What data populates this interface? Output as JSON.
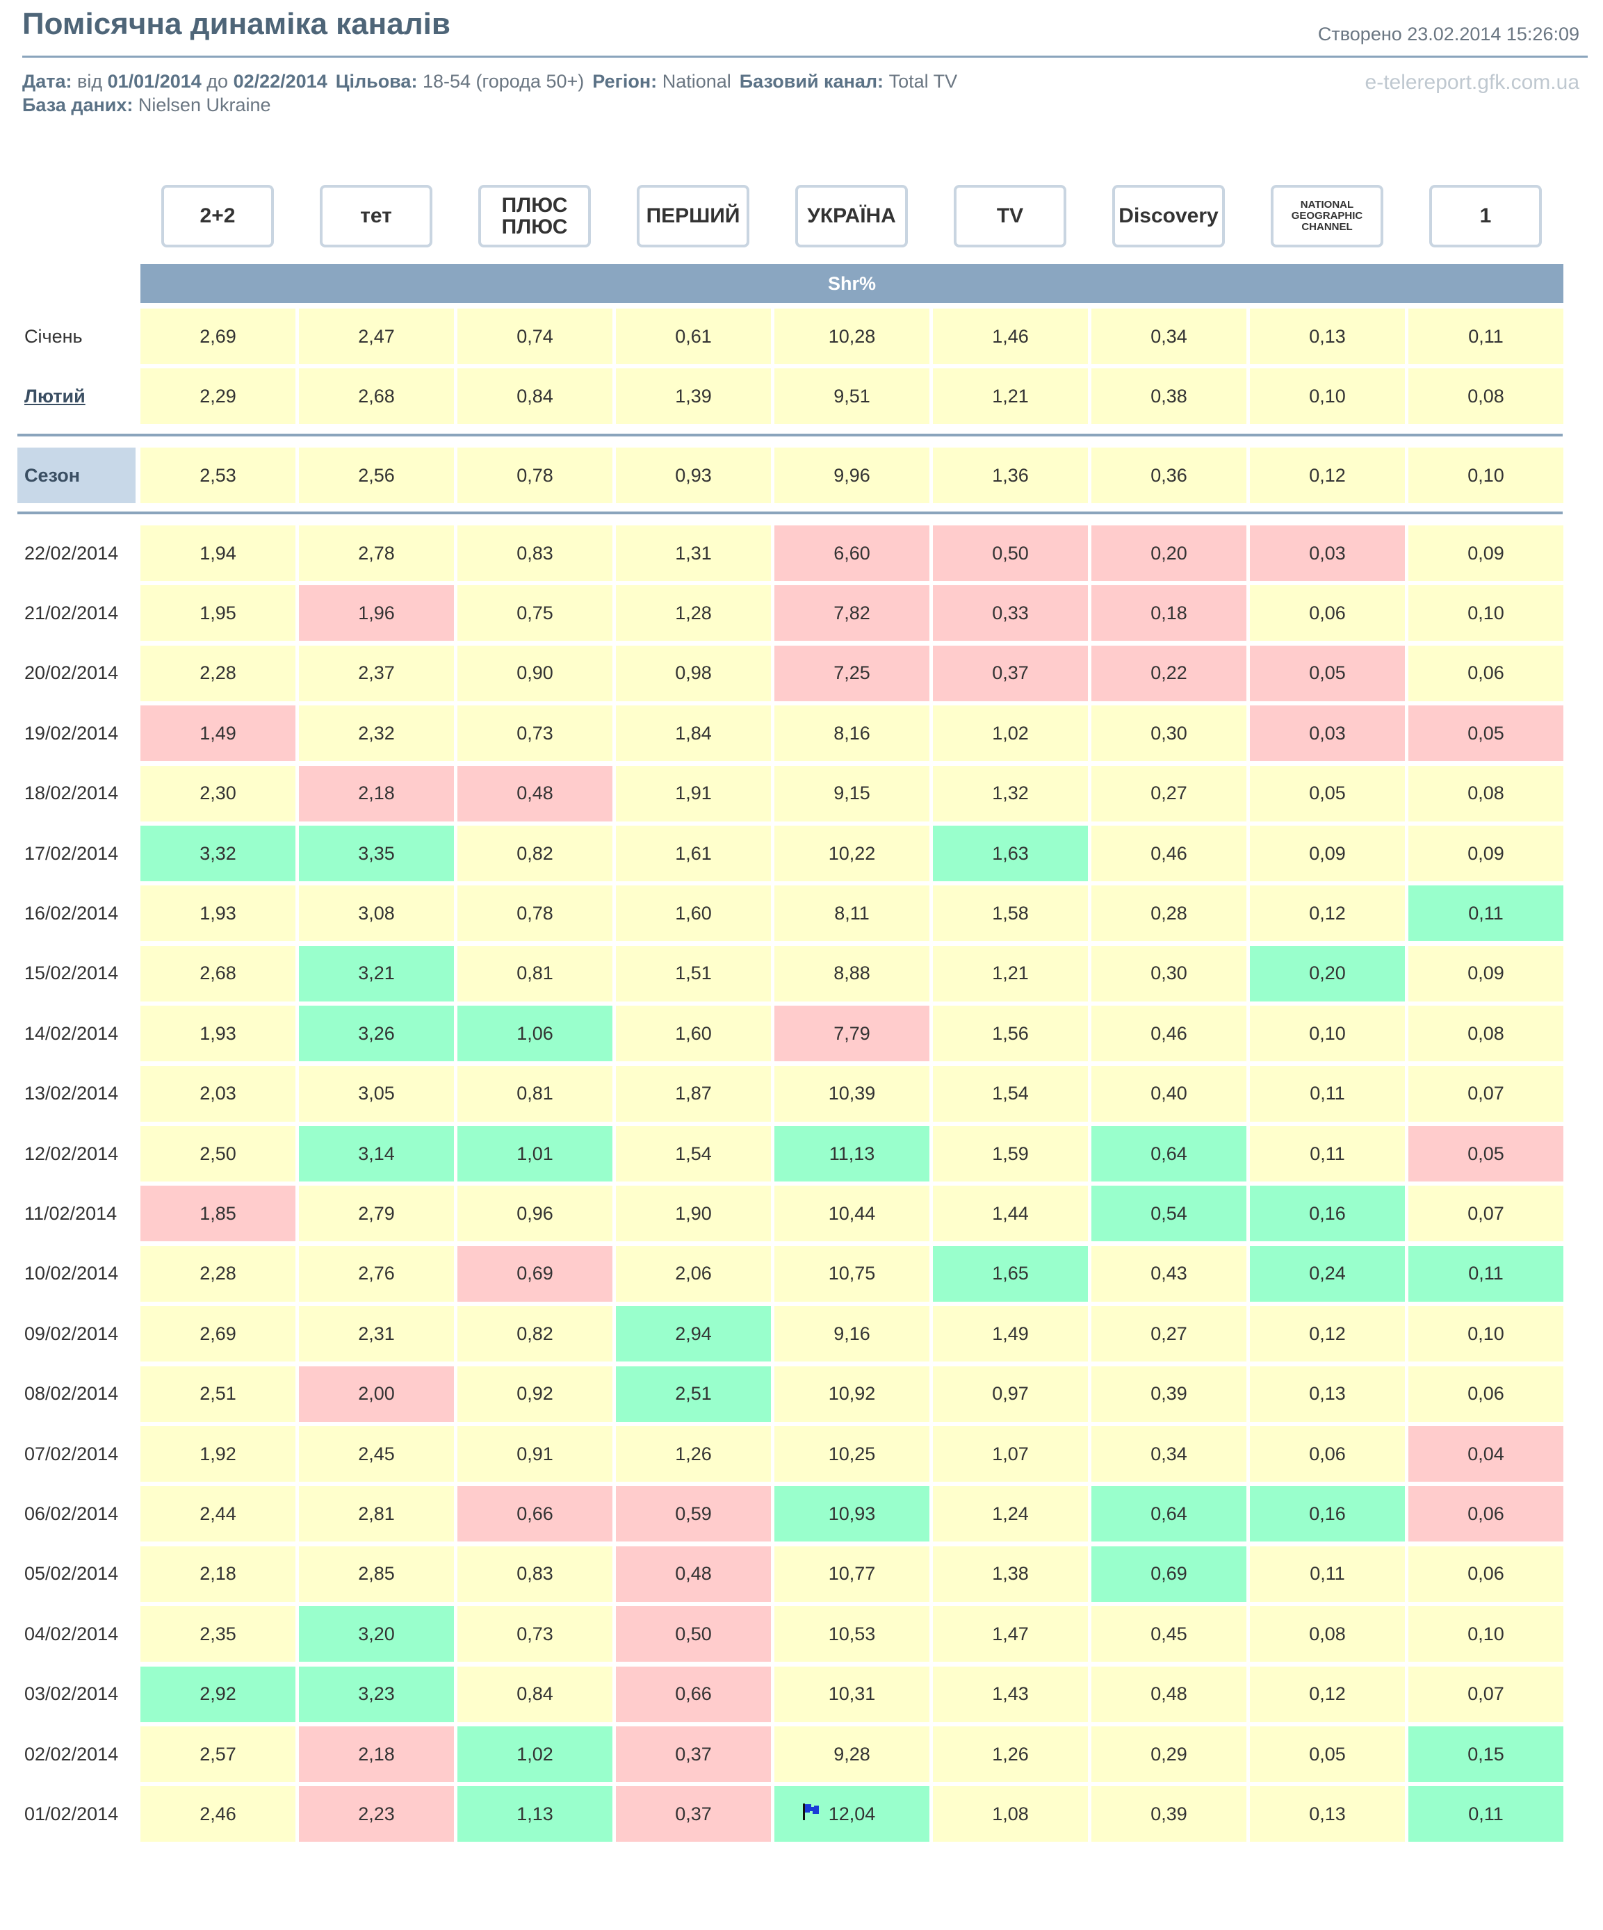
{
  "header": {
    "title": "Помісячна динаміка каналів",
    "created": "Створено 23.02.2014 15:26:09",
    "source": "e-telereport.gfk.com.ua"
  },
  "filters": [
    [
      {
        "label": "Дата:",
        "value": [
          "від",
          "01/01/2014",
          "до",
          "02/22/2014"
        ]
      },
      {
        "label": "Цільова:",
        "value": [
          "18-54 (города 50+)"
        ]
      },
      {
        "label": "Регіон:",
        "value": [
          "National"
        ]
      },
      {
        "label": "Базовий канал:",
        "value": [
          "Total TV"
        ]
      }
    ],
    [
      {
        "label": "База даних:",
        "value": [
          "Nielsen Ukraine"
        ]
      }
    ]
  ],
  "table": {
    "measure": "Shr%",
    "channels": [
      "2+2",
      "тет",
      "ПЛЮС ПЛЮС",
      "ПЕРШИЙ",
      "УКРАЇНА",
      "TV",
      "Discovery",
      "NATIONAL GEOGRAPHIC CHANNEL",
      "1"
    ],
    "months": [
      {
        "label": "Січень",
        "values": [
          "2,69",
          "2,47",
          "0,74",
          "0,61",
          "10,28",
          "1,46",
          "0,34",
          "0,13",
          "0,11"
        ]
      },
      {
        "label": "Лютий",
        "values": [
          "2,29",
          "2,68",
          "0,84",
          "1,39",
          "9,51",
          "1,21",
          "0,38",
          "0,10",
          "0,08"
        ]
      }
    ],
    "season": {
      "label": "Сезон",
      "values": [
        "2,53",
        "2,56",
        "0,78",
        "0,93",
        "9,96",
        "1,36",
        "0,36",
        "0,12",
        "0,10"
      ]
    },
    "cell_color": "#ffffcc",
    "days": [
      {
        "label": "22/02/2014",
        "values": [
          "1,94",
          "2,78",
          "0,83",
          "1,31",
          "6,60",
          "0,50",
          "0,20",
          "0,03",
          "0,09"
        ],
        "colors": [
          "#ffffcc",
          "#ffffcc",
          "#ffffcc",
          "#ffffcc",
          "#ffcccc",
          "#ffcccc",
          "#ffcccc",
          "#ffcccc",
          "#ffffcc"
        ]
      },
      {
        "label": "21/02/2014",
        "values": [
          "1,95",
          "1,96",
          "0,75",
          "1,28",
          "7,82",
          "0,33",
          "0,18",
          "0,06",
          "0,10"
        ],
        "colors": [
          "#ffffcc",
          "#ffcccc",
          "#ffffcc",
          "#ffffcc",
          "#ffcccc",
          "#ffcccc",
          "#ffcccc",
          "#ffffcc",
          "#ffffcc"
        ]
      },
      {
        "label": "20/02/2014",
        "values": [
          "2,28",
          "2,37",
          "0,90",
          "0,98",
          "7,25",
          "0,37",
          "0,22",
          "0,05",
          "0,06"
        ],
        "colors": [
          "#ffffcc",
          "#ffffcc",
          "#ffffcc",
          "#ffffcc",
          "#ffcccc",
          "#ffcccc",
          "#ffcccc",
          "#ffcccc",
          "#ffffcc"
        ]
      },
      {
        "label": "19/02/2014",
        "values": [
          "1,49",
          "2,32",
          "0,73",
          "1,84",
          "8,16",
          "1,02",
          "0,30",
          "0,03",
          "0,05"
        ],
        "colors": [
          "#ffcccc",
          "#ffffcc",
          "#ffffcc",
          "#ffffcc",
          "#ffffcc",
          "#ffffcc",
          "#ffffcc",
          "#ffcccc",
          "#ffcccc"
        ]
      },
      {
        "label": "18/02/2014",
        "values": [
          "2,30",
          "2,18",
          "0,48",
          "1,91",
          "9,15",
          "1,32",
          "0,27",
          "0,05",
          "0,08"
        ],
        "colors": [
          "#ffffcc",
          "#ffcccc",
          "#ffcccc",
          "#ffffcc",
          "#ffffcc",
          "#ffffcc",
          "#ffffcc",
          "#ffffcc",
          "#ffffcc"
        ]
      },
      {
        "label": "17/02/2014",
        "values": [
          "3,32",
          "3,35",
          "0,82",
          "1,61",
          "10,22",
          "1,63",
          "0,46",
          "0,09",
          "0,09"
        ],
        "colors": [
          "#99ffcc",
          "#99ffcc",
          "#ffffcc",
          "#ffffcc",
          "#ffffcc",
          "#99ffcc",
          "#ffffcc",
          "#ffffcc",
          "#ffffcc"
        ]
      },
      {
        "label": "16/02/2014",
        "values": [
          "1,93",
          "3,08",
          "0,78",
          "1,60",
          "8,11",
          "1,58",
          "0,28",
          "0,12",
          "0,11"
        ],
        "colors": [
          "#ffffcc",
          "#ffffcc",
          "#ffffcc",
          "#ffffcc",
          "#ffffcc",
          "#ffffcc",
          "#ffffcc",
          "#ffffcc",
          "#99ffcc"
        ]
      },
      {
        "label": "15/02/2014",
        "values": [
          "2,68",
          "3,21",
          "0,81",
          "1,51",
          "8,88",
          "1,21",
          "0,30",
          "0,20",
          "0,09"
        ],
        "colors": [
          "#ffffcc",
          "#99ffcc",
          "#ffffcc",
          "#ffffcc",
          "#ffffcc",
          "#ffffcc",
          "#ffffcc",
          "#99ffcc",
          "#ffffcc"
        ]
      },
      {
        "label": "14/02/2014",
        "values": [
          "1,93",
          "3,26",
          "1,06",
          "1,60",
          "7,79",
          "1,56",
          "0,46",
          "0,10",
          "0,08"
        ],
        "colors": [
          "#ffffcc",
          "#99ffcc",
          "#99ffcc",
          "#ffffcc",
          "#ffcccc",
          "#ffffcc",
          "#ffffcc",
          "#ffffcc",
          "#ffffcc"
        ]
      },
      {
        "label": "13/02/2014",
        "values": [
          "2,03",
          "3,05",
          "0,81",
          "1,87",
          "10,39",
          "1,54",
          "0,40",
          "0,11",
          "0,07"
        ],
        "colors": [
          "#ffffcc",
          "#ffffcc",
          "#ffffcc",
          "#ffffcc",
          "#ffffcc",
          "#ffffcc",
          "#ffffcc",
          "#ffffcc",
          "#ffffcc"
        ]
      },
      {
        "label": "12/02/2014",
        "values": [
          "2,50",
          "3,14",
          "1,01",
          "1,54",
          "11,13",
          "1,59",
          "0,64",
          "0,11",
          "0,05"
        ],
        "colors": [
          "#ffffcc",
          "#99ffcc",
          "#99ffcc",
          "#ffffcc",
          "#99ffcc",
          "#ffffcc",
          "#99ffcc",
          "#ffffcc",
          "#ffcccc"
        ]
      },
      {
        "label": "11/02/2014",
        "values": [
          "1,85",
          "2,79",
          "0,96",
          "1,90",
          "10,44",
          "1,44",
          "0,54",
          "0,16",
          "0,07"
        ],
        "colors": [
          "#ffcccc",
          "#ffffcc",
          "#ffffcc",
          "#ffffcc",
          "#ffffcc",
          "#ffffcc",
          "#99ffcc",
          "#99ffcc",
          "#ffffcc"
        ]
      },
      {
        "label": "10/02/2014",
        "values": [
          "2,28",
          "2,76",
          "0,69",
          "2,06",
          "10,75",
          "1,65",
          "0,43",
          "0,24",
          "0,11"
        ],
        "colors": [
          "#ffffcc",
          "#ffffcc",
          "#ffcccc",
          "#ffffcc",
          "#ffffcc",
          "#99ffcc",
          "#ffffcc",
          "#99ffcc",
          "#99ffcc"
        ]
      },
      {
        "label": "09/02/2014",
        "values": [
          "2,69",
          "2,31",
          "0,82",
          "2,94",
          "9,16",
          "1,49",
          "0,27",
          "0,12",
          "0,10"
        ],
        "colors": [
          "#ffffcc",
          "#ffffcc",
          "#ffffcc",
          "#99ffcc",
          "#ffffcc",
          "#ffffcc",
          "#ffffcc",
          "#ffffcc",
          "#ffffcc"
        ]
      },
      {
        "label": "08/02/2014",
        "values": [
          "2,51",
          "2,00",
          "0,92",
          "2,51",
          "10,92",
          "0,97",
          "0,39",
          "0,13",
          "0,06"
        ],
        "colors": [
          "#ffffcc",
          "#ffcccc",
          "#ffffcc",
          "#99ffcc",
          "#ffffcc",
          "#ffffcc",
          "#ffffcc",
          "#ffffcc",
          "#ffffcc"
        ]
      },
      {
        "label": "07/02/2014",
        "values": [
          "1,92",
          "2,45",
          "0,91",
          "1,26",
          "10,25",
          "1,07",
          "0,34",
          "0,06",
          "0,04"
        ],
        "colors": [
          "#ffffcc",
          "#ffffcc",
          "#ffffcc",
          "#ffffcc",
          "#ffffcc",
          "#ffffcc",
          "#ffffcc",
          "#ffffcc",
          "#ffcccc"
        ]
      },
      {
        "label": "06/02/2014",
        "values": [
          "2,44",
          "2,81",
          "0,66",
          "0,59",
          "10,93",
          "1,24",
          "0,64",
          "0,16",
          "0,06"
        ],
        "colors": [
          "#ffffcc",
          "#ffffcc",
          "#ffcccc",
          "#ffcccc",
          "#99ffcc",
          "#ffffcc",
          "#99ffcc",
          "#99ffcc",
          "#ffcccc"
        ]
      },
      {
        "label": "05/02/2014",
        "values": [
          "2,18",
          "2,85",
          "0,83",
          "0,48",
          "10,77",
          "1,38",
          "0,69",
          "0,11",
          "0,06"
        ],
        "colors": [
          "#ffffcc",
          "#ffffcc",
          "#ffffcc",
          "#ffcccc",
          "#ffffcc",
          "#ffffcc",
          "#99ffcc",
          "#ffffcc",
          "#ffffcc"
        ]
      },
      {
        "label": "04/02/2014",
        "values": [
          "2,35",
          "3,20",
          "0,73",
          "0,50",
          "10,53",
          "1,47",
          "0,45",
          "0,08",
          "0,10"
        ],
        "colors": [
          "#ffffcc",
          "#99ffcc",
          "#ffffcc",
          "#ffcccc",
          "#ffffcc",
          "#ffffcc",
          "#ffffcc",
          "#ffffcc",
          "#ffffcc"
        ]
      },
      {
        "label": "03/02/2014",
        "values": [
          "2,92",
          "3,23",
          "0,84",
          "0,66",
          "10,31",
          "1,43",
          "0,48",
          "0,12",
          "0,07"
        ],
        "colors": [
          "#99ffcc",
          "#99ffcc",
          "#ffffcc",
          "#ffcccc",
          "#ffffcc",
          "#ffffcc",
          "#ffffcc",
          "#ffffcc",
          "#ffffcc"
        ]
      },
      {
        "label": "02/02/2014",
        "values": [
          "2,57",
          "2,18",
          "1,02",
          "0,37",
          "9,28",
          "1,26",
          "0,29",
          "0,05",
          "0,15"
        ],
        "colors": [
          "#ffffcc",
          "#ffcccc",
          "#99ffcc",
          "#ffcccc",
          "#ffffcc",
          "#ffffcc",
          "#ffffcc",
          "#ffffcc",
          "#99ffcc"
        ]
      },
      {
        "label": "01/02/2014",
        "values": [
          "2,46",
          "2,23",
          "1,13",
          "0,37",
          "12,04",
          "1,08",
          "0,39",
          "0,13",
          "0,11"
        ],
        "colors": [
          "#ffffcc",
          "#ffcccc",
          "#99ffcc",
          "#ffcccc",
          "#99ffcc",
          "#ffffcc",
          "#ffffcc",
          "#ffffcc",
          "#99ffcc"
        ]
      }
    ]
  }
}
